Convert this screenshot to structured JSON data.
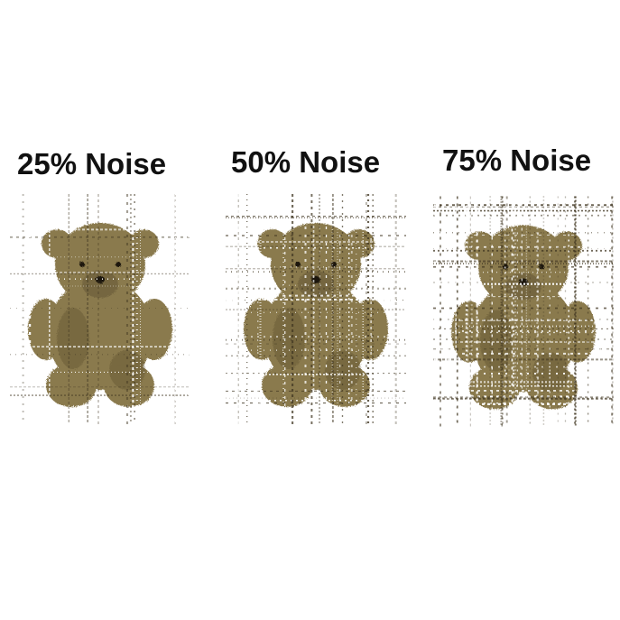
{
  "panels": [
    {
      "label": "25% Noise",
      "noise_level": 0.25
    },
    {
      "label": "50% Noise",
      "noise_level": 0.5
    },
    {
      "label": "75% Noise",
      "noise_level": 0.75
    }
  ],
  "colors": {
    "background": "#ffffff",
    "bear_fur": "#8a7a4e",
    "bear_shadow": "#4e4326",
    "noise_dark": "#3f3520",
    "noise_light": "#ffffff",
    "caption_text": "#111111"
  }
}
